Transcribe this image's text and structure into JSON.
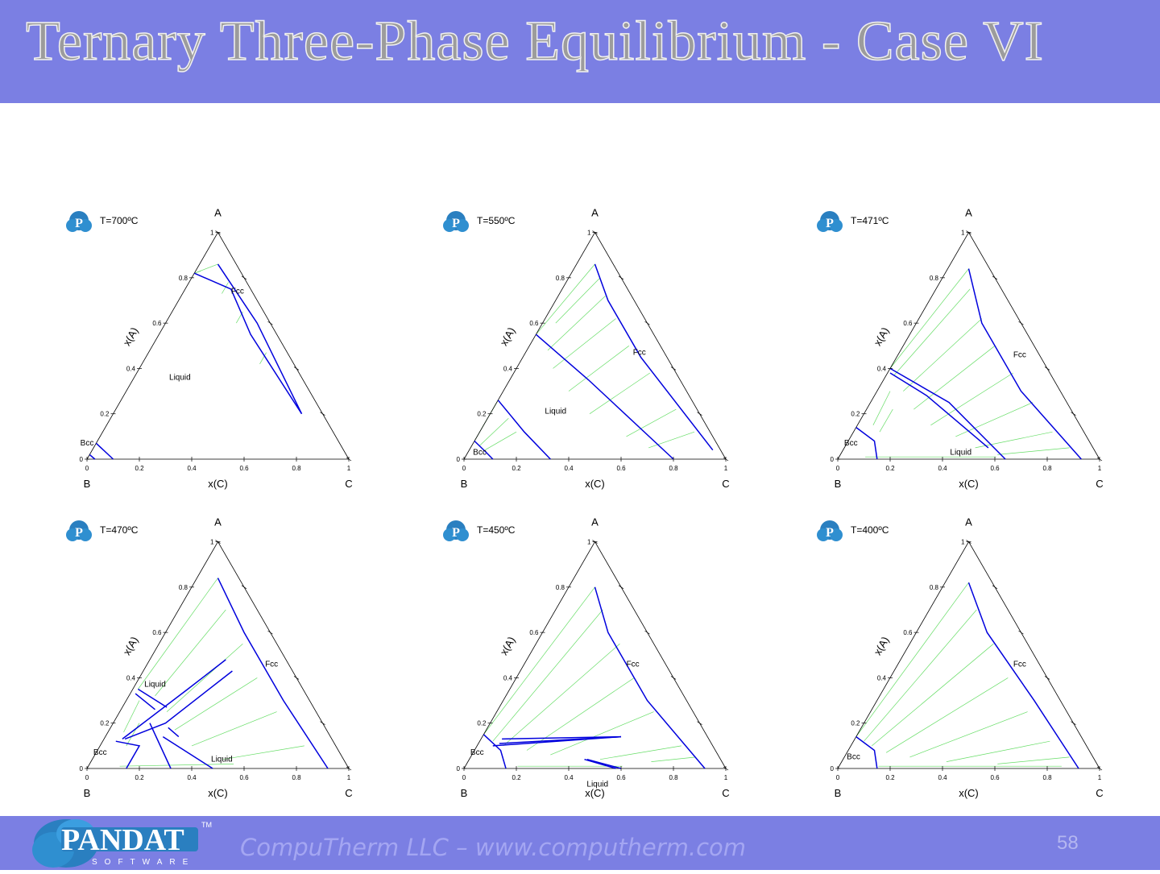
{
  "slide": {
    "title": "Ternary Three-Phase Equilibrium - Case VI",
    "footer": "CompuTherm LLC – www.computherm.com",
    "page_number": "58",
    "logo_text": "PANDAT",
    "logo_sub": "SOFTWARE",
    "logo_tm": "TM",
    "icon": "pandat-p-icon"
  },
  "axes": {
    "top_vertex": "A",
    "left_vertex": "B",
    "right_vertex": "C",
    "xlabel": "x(C)",
    "ylabel": "x(A)",
    "ticks": [
      "0",
      "0.2",
      "0.4",
      "0.6",
      "0.8",
      "1"
    ]
  },
  "colors": {
    "header": "#7b7fe3",
    "boundary": "#0000dd",
    "tieline": "#66dd66"
  },
  "panels": [
    {
      "temp": "T=700ºC",
      "phases": [
        "Fcc",
        "Liquid",
        "Bcc"
      ]
    },
    {
      "temp": "T=550ºC",
      "phases": [
        "Fcc",
        "Liquid",
        "Bcc"
      ]
    },
    {
      "temp": "T=471ºC",
      "phases": [
        "Fcc",
        "Bcc",
        "Liquid"
      ]
    },
    {
      "temp": "T=470ºC",
      "phases": [
        "Fcc",
        "Liquid",
        "Bcc",
        "Liquid"
      ]
    },
    {
      "temp": "T=450ºC",
      "phases": [
        "Fcc",
        "Bcc",
        "Liquid"
      ]
    },
    {
      "temp": "T=400ºC",
      "phases": [
        "Fcc",
        "Bcc"
      ]
    }
  ]
}
